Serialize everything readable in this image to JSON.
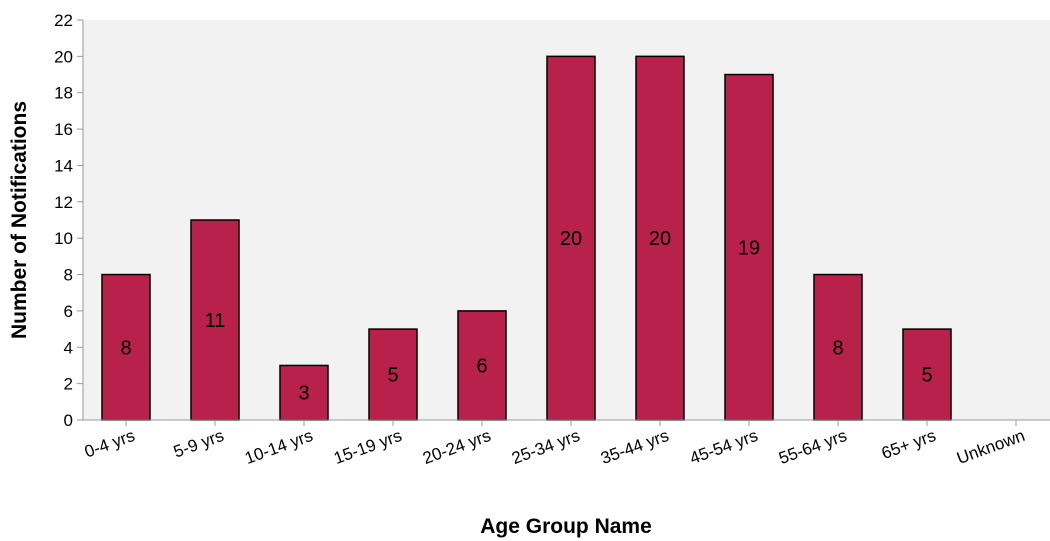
{
  "chart_data": {
    "type": "bar",
    "title": "",
    "xlabel": "Age Group Name",
    "ylabel": "Number of Notifications",
    "categories": [
      "0-4 yrs",
      "5-9 yrs",
      "10-14 yrs",
      "15-19 yrs",
      "20-24 yrs",
      "25-34 yrs",
      "35-44 yrs",
      "45-54 yrs",
      "55-64 yrs",
      "65+ yrs",
      "Unknown"
    ],
    "values": [
      8,
      11,
      3,
      5,
      6,
      20,
      20,
      19,
      8,
      5,
      null
    ],
    "data_labels": [
      "8",
      "11",
      "3",
      "5",
      "6",
      "20",
      "20",
      "19",
      "8",
      "5",
      ""
    ],
    "ylim": [
      0,
      22
    ],
    "yticks": [
      0,
      2,
      4,
      6,
      8,
      10,
      12,
      14,
      16,
      18,
      20,
      22
    ],
    "grid": false,
    "legend": "none",
    "colors": {
      "bar_fill": "#b8214a",
      "bar_stroke": "#000000",
      "plot_background": "#f2f2f2",
      "axis": "#999999"
    }
  }
}
